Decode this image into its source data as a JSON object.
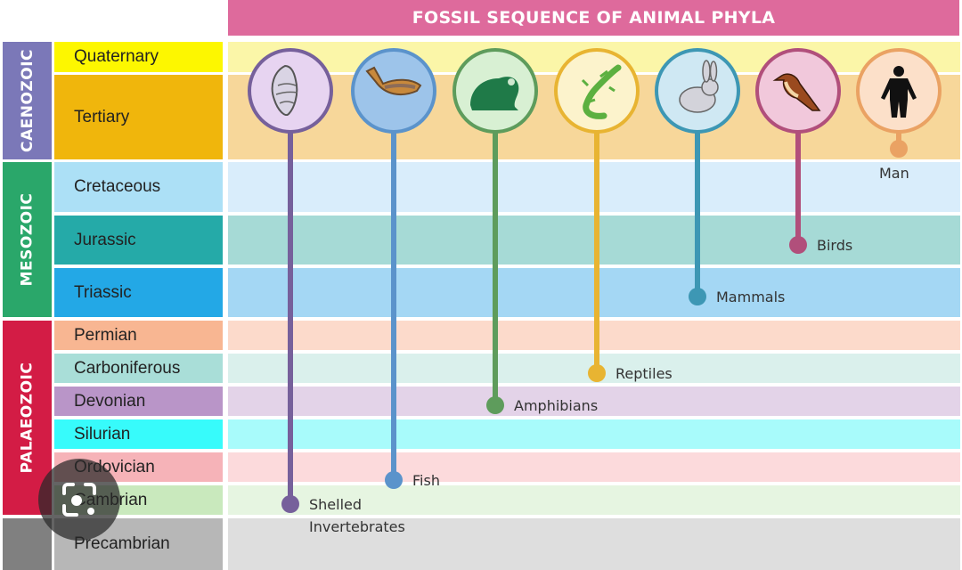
{
  "title": "FOSSIL SEQUENCE OF ANIMAL PHYLA",
  "eras": [
    {
      "name": "CAENOZOIC",
      "color": "#7b78b8"
    },
    {
      "name": "MESOZOIC",
      "color": "#2aa76a"
    },
    {
      "name": "PALAEOZOIC",
      "color": "#d31c45"
    },
    {
      "name": "",
      "color": "#808080"
    }
  ],
  "periods": [
    {
      "name": "Quaternary",
      "color": "#fdf700",
      "band": "#fbf6a8"
    },
    {
      "name": "Tertiary",
      "color": "#f0b60c",
      "band": "#f7d79a"
    },
    {
      "name": "Cretaceous",
      "color": "#ace0f6",
      "band": "#d9edfb"
    },
    {
      "name": "Jurassic",
      "color": "#25aaa8",
      "band": "#a6dad6"
    },
    {
      "name": "Triassic",
      "color": "#23a8e6",
      "band": "#a4d7f4"
    },
    {
      "name": "Permian",
      "color": "#f8b692",
      "band": "#fcdacb"
    },
    {
      "name": "Carboniferous",
      "color": "#a9ded8",
      "band": "#daf0ec"
    },
    {
      "name": "Devonian",
      "color": "#b995c8",
      "band": "#e3d3e8"
    },
    {
      "name": "Silurian",
      "color": "#37fbfb",
      "band": "#a8fbfb"
    },
    {
      "name": "Ordovician",
      "color": "#f6b3b8",
      "band": "#fcdadc"
    },
    {
      "name": "Cambrian",
      "color": "#c9e9bd",
      "band": "#e6f5e1"
    },
    {
      "name": "Precambrian",
      "color": "#b7b7b7",
      "band": "#dedede"
    }
  ],
  "phyla": [
    {
      "label": "Shelled",
      "label2": "Invertebrates",
      "icon": "shell-icon",
      "color": "#76609b",
      "fill": "#e7d4f1"
    },
    {
      "label": "Fish",
      "icon": "fish-icon",
      "color": "#5b93cb",
      "fill": "#9dc4ea"
    },
    {
      "label": "Amphibians",
      "icon": "frog-icon",
      "color": "#5e9c5c",
      "fill": "#d8f0d3"
    },
    {
      "label": "Reptiles",
      "icon": "lizard-icon",
      "color": "#e8b432",
      "fill": "#fcf3cc"
    },
    {
      "label": "Mammals",
      "icon": "rabbit-icon",
      "color": "#3d97b4",
      "fill": "#cfe8f3"
    },
    {
      "label": "Birds",
      "icon": "bird-icon",
      "color": "#b14f7b",
      "fill": "#f1c8db"
    },
    {
      "label": "Man",
      "icon": "human-icon",
      "color": "#eaa263",
      "fill": "#fce0c9"
    }
  ]
}
